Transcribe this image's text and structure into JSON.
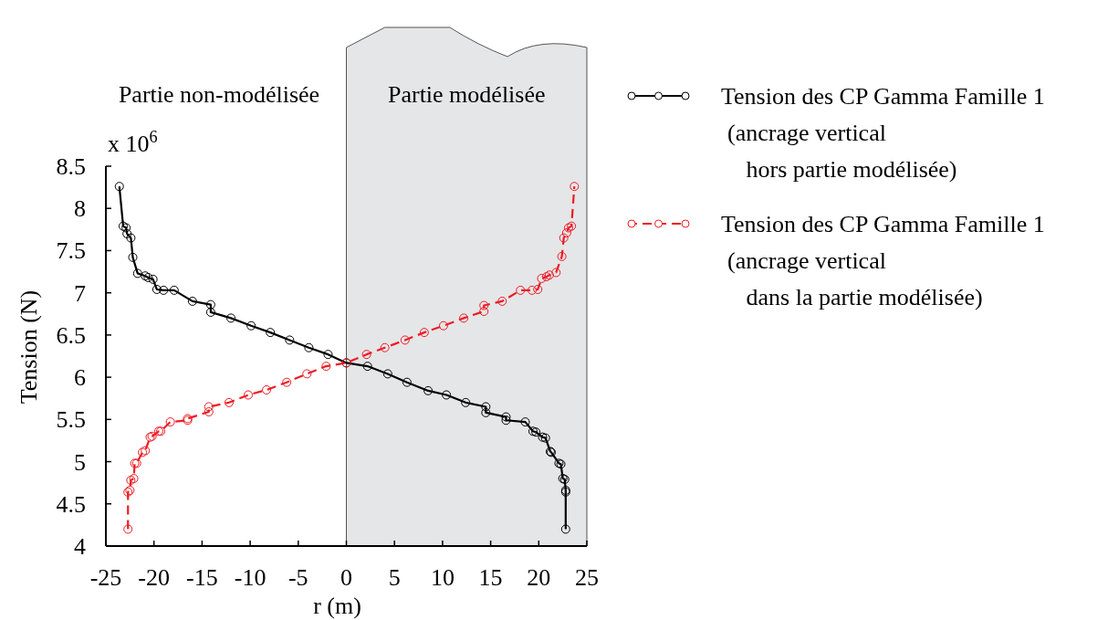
{
  "chart_data": {
    "type": "line",
    "xlabel": "r (m)",
    "ylabel": "Tension (N)",
    "xlim": [
      -25,
      25
    ],
    "xticks": [
      -25,
      -20,
      -15,
      -10,
      -5,
      0,
      5,
      10,
      15,
      20,
      25
    ],
    "ylim": [
      4,
      8.5
    ],
    "yticks": [
      4,
      4.5,
      5,
      5.5,
      6,
      6.5,
      7,
      7.5,
      8,
      8.5
    ],
    "grid": false,
    "legend": "right",
    "marker": "circle",
    "annotations": [
      "x 10$^{6}$",
      "Partie non-modélisée"
    ],
    "bands": [
      {
        "axis": "x",
        "from": 0,
        "to": 25,
        "label": "Partie modélisée",
        "color": "#e5e6e8"
      }
    ],
    "series": [
      {
        "name": "Tension des CP Gamma Famille 1\n(ancrage vertical\n hors partie modélisée)",
        "color": "#000000",
        "line_style": "solid",
        "x": [
          -23.6,
          -23.2,
          -22.9,
          -22.8,
          -22.4,
          -22.2,
          -21.7,
          -20.9,
          -20.6,
          -20.1,
          -19.7,
          -19.0,
          -17.9,
          -16.0,
          -14.1,
          -14.1,
          -12.0,
          -9.9,
          -7.9,
          -5.9,
          -3.9,
          -1.9,
          0,
          2.2,
          4.3,
          6.3,
          8.5,
          10.4,
          12.4,
          14.5,
          14.5,
          16.6,
          16.6,
          18.6,
          19.4,
          19.7,
          20.4,
          20.7,
          21.2,
          21.3,
          22.1,
          22.3,
          22.5,
          22.7,
          22.8,
          22.8,
          22.8
        ],
        "values": [
          8.26,
          7.79,
          7.77,
          7.7,
          7.65,
          7.42,
          7.23,
          7.2,
          7.18,
          7.16,
          7.04,
          7.03,
          7.03,
          6.9,
          6.86,
          6.77,
          6.7,
          6.61,
          6.53,
          6.44,
          6.35,
          6.27,
          6.17,
          6.13,
          6.04,
          5.94,
          5.84,
          5.79,
          5.7,
          5.65,
          5.58,
          5.53,
          5.49,
          5.47,
          5.36,
          5.35,
          5.29,
          5.28,
          5.12,
          5.11,
          4.98,
          4.97,
          4.8,
          4.79,
          4.66,
          4.64,
          4.2
        ]
      },
      {
        "name": "Tension des CP Gamma Famille 1\n(ancrage vertical\n dans la partie modélisée)",
        "color": "#ed1c24",
        "line_style": "dashed",
        "x": [
          -22.7,
          -22.7,
          -22.5,
          -22.4,
          -22.1,
          -22.0,
          -21.8,
          -21.2,
          -20.9,
          -20.4,
          -20.2,
          -19.5,
          -19.3,
          -18.3,
          -16.5,
          -16.5,
          -14.3,
          -14.3,
          -12.2,
          -10.2,
          -8.3,
          -6.2,
          -4.1,
          -2.1,
          0,
          2.1,
          4.0,
          6.1,
          8.1,
          10.1,
          12.2,
          14.3,
          14.3,
          16.2,
          18.1,
          19.3,
          19.9,
          20.3,
          20.8,
          21.1,
          21.8,
          22.4,
          22.6,
          22.9,
          23.1,
          23.4,
          23.7
        ],
        "values": [
          4.2,
          4.64,
          4.66,
          4.78,
          4.8,
          4.98,
          4.98,
          5.11,
          5.13,
          5.29,
          5.3,
          5.36,
          5.36,
          5.47,
          5.49,
          5.51,
          5.59,
          5.65,
          5.7,
          5.79,
          5.85,
          5.94,
          6.04,
          6.13,
          6.17,
          6.27,
          6.35,
          6.44,
          6.53,
          6.61,
          6.7,
          6.78,
          6.85,
          6.9,
          7.03,
          7.03,
          7.04,
          7.17,
          7.19,
          7.21,
          7.24,
          7.43,
          7.65,
          7.71,
          7.77,
          7.79,
          8.26
        ]
      }
    ]
  }
}
